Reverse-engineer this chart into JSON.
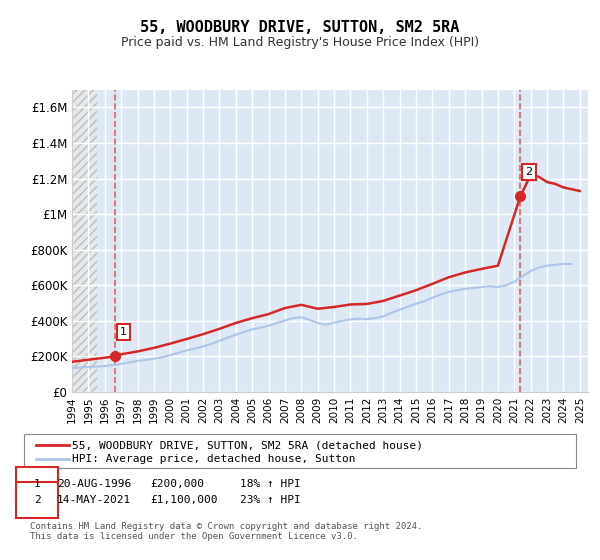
{
  "title": "55, WOODBURY DRIVE, SUTTON, SM2 5RA",
  "subtitle": "Price paid vs. HM Land Registry's House Price Index (HPI)",
  "ylabel_ticks": [
    "£0",
    "£200K",
    "£400K",
    "£600K",
    "£800K",
    "£1M",
    "£1.2M",
    "£1.4M",
    "£1.6M"
  ],
  "ylabel_values": [
    0,
    200000,
    400000,
    600000,
    800000,
    1000000,
    1200000,
    1400000,
    1600000
  ],
  "ylim": [
    0,
    1700000
  ],
  "xlim_start": 1994.0,
  "xlim_end": 2025.5,
  "xticks": [
    1994,
    1995,
    1996,
    1997,
    1998,
    1999,
    2000,
    2001,
    2002,
    2003,
    2004,
    2005,
    2006,
    2007,
    2008,
    2009,
    2010,
    2011,
    2012,
    2013,
    2014,
    2015,
    2016,
    2017,
    2018,
    2019,
    2020,
    2021,
    2022,
    2023,
    2024,
    2025
  ],
  "hpi_line_color": "#aec6e8",
  "price_line_color": "#d62728",
  "marker_color": "#d62728",
  "bg_plot_color": "#dce9f5",
  "hatch_color": "#c8c8c8",
  "grid_color": "#ffffff",
  "dashed_line_color": "#e06060",
  "annotation_box_color": "#d62728",
  "legend_label_price": "55, WOODBURY DRIVE, SUTTON, SM2 5RA (detached house)",
  "legend_label_hpi": "HPI: Average price, detached house, Sutton",
  "note1_label": "1",
  "note1_date": "20-AUG-1996",
  "note1_price": "£200,000",
  "note1_hpi": "18% ↑ HPI",
  "note2_label": "2",
  "note2_date": "14-MAY-2021",
  "note2_price": "£1,100,000",
  "note2_hpi": "23% ↑ HPI",
  "footer": "Contains HM Land Registry data © Crown copyright and database right 2024.\nThis data is licensed under the Open Government Licence v3.0.",
  "sale1_year": 1996.63,
  "sale1_price": 200000,
  "sale2_year": 2021.37,
  "sale2_price": 1100000,
  "hpi_years": [
    1994,
    1994.5,
    1995,
    1995.5,
    1996,
    1996.5,
    1997,
    1997.5,
    1998,
    1998.5,
    1999,
    1999.5,
    2000,
    2000.5,
    2001,
    2001.5,
    2002,
    2002.5,
    2003,
    2003.5,
    2004,
    2004.5,
    2005,
    2005.5,
    2006,
    2006.5,
    2007,
    2007.5,
    2008,
    2008.5,
    2009,
    2009.5,
    2010,
    2010.5,
    2011,
    2011.5,
    2012,
    2012.5,
    2013,
    2013.5,
    2014,
    2014.5,
    2015,
    2015.5,
    2016,
    2016.5,
    2017,
    2017.5,
    2018,
    2018.5,
    2019,
    2019.5,
    2020,
    2020.5,
    2021,
    2021.5,
    2022,
    2022.5,
    2023,
    2023.5,
    2024,
    2024.5
  ],
  "hpi_values": [
    135000,
    138000,
    141000,
    143000,
    146000,
    152000,
    158000,
    166000,
    175000,
    180000,
    187000,
    196000,
    207000,
    220000,
    234000,
    244000,
    256000,
    270000,
    288000,
    305000,
    322000,
    338000,
    352000,
    362000,
    372000,
    388000,
    402000,
    415000,
    420000,
    405000,
    388000,
    378000,
    390000,
    400000,
    408000,
    412000,
    410000,
    415000,
    425000,
    445000,
    462000,
    480000,
    496000,
    510000,
    530000,
    548000,
    562000,
    572000,
    580000,
    585000,
    590000,
    595000,
    590000,
    600000,
    620000,
    650000,
    680000,
    700000,
    710000,
    715000,
    720000,
    720000
  ],
  "price_years": [
    1994,
    1996.63,
    1997,
    1998,
    1999,
    2000,
    2001,
    2002,
    2003,
    2004,
    2005,
    2006,
    2007,
    2008,
    2009,
    2010,
    2011,
    2012,
    2013,
    2014,
    2015,
    2016,
    2017,
    2018,
    2019,
    2020,
    2021.37,
    2022,
    2022.5,
    2023,
    2023.5,
    2024,
    2024.5,
    2025
  ],
  "price_values": [
    170000,
    200000,
    212000,
    228000,
    248000,
    272000,
    298000,
    325000,
    355000,
    388000,
    415000,
    438000,
    472000,
    490000,
    468000,
    478000,
    492000,
    495000,
    512000,
    542000,
    572000,
    608000,
    645000,
    672000,
    692000,
    710000,
    1100000,
    1220000,
    1210000,
    1180000,
    1170000,
    1150000,
    1140000,
    1130000
  ]
}
